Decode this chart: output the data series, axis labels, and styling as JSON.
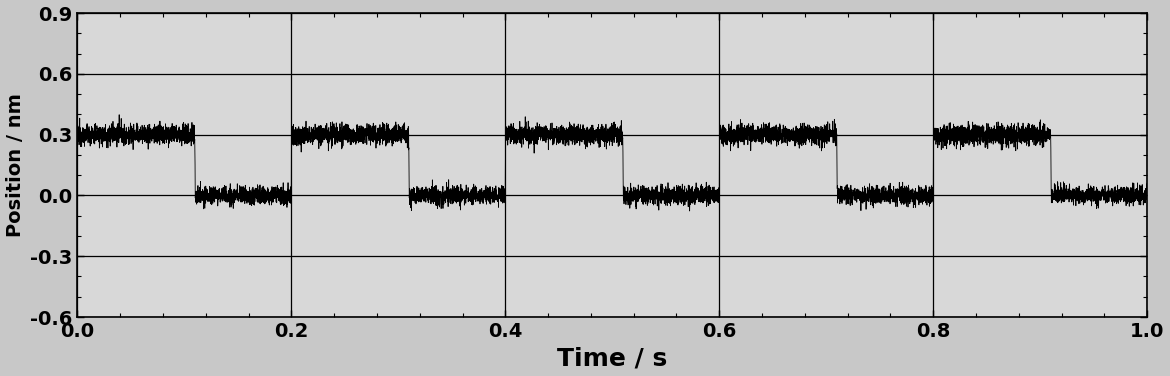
{
  "xlabel": "Time / s",
  "ylabel": "Position / nm",
  "xlim": [
    0.0,
    1.0
  ],
  "ylim": [
    -0.6,
    0.9
  ],
  "yticks": [
    -0.6,
    -0.3,
    0.0,
    0.3,
    0.6,
    0.9
  ],
  "xticks": [
    0.0,
    0.2,
    0.4,
    0.6,
    0.8,
    1.0
  ],
  "high_level": 0.3,
  "low_level": 0.0,
  "noise_std_high": 0.025,
  "noise_std_low": 0.022,
  "period": 0.2,
  "duty_high": 0.55,
  "total_time": 1.0,
  "num_points": 10000,
  "transition_steepness": 2000,
  "line_color": "#000000",
  "line_width": 0.6,
  "bg_color": "#c8c8c8",
  "plot_bg_color": "#d8d8d8",
  "grid_color": "#000000",
  "grid_linewidth": 0.9,
  "xlabel_fontsize": 18,
  "ylabel_fontsize": 14,
  "tick_fontsize": 14,
  "xlabel_fontweight": "bold",
  "ylabel_fontweight": "bold"
}
